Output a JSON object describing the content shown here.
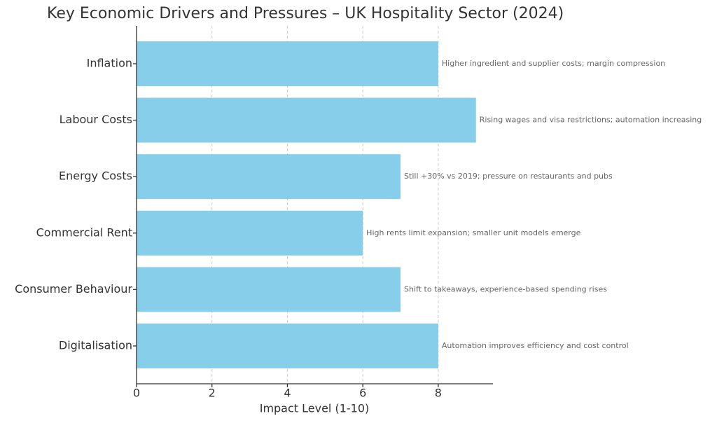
{
  "chart_data": {
    "type": "hbar",
    "title": "Key Economic Drivers and Pressures – UK Hospitality Sector (2024)",
    "x_label": "Impact Level (1-10)",
    "categories": [
      "Inflation",
      "Labour Costs",
      "Energy Costs",
      "Commercial Rent",
      "Consumer Behaviour",
      "Digitalisation"
    ],
    "values": [
      8,
      9,
      7,
      6,
      7,
      8
    ],
    "annotations": [
      "Higher ingredient and supplier costs; margin compression",
      "Rising wages and visa restrictions; automation increasing",
      "Still +30% vs 2019; pressure on restaurants and pubs",
      "High rents limit expansion; smaller unit models emerge",
      "Shift to takeaways, experience-based spending rises",
      "Automation improves efficiency and cost control"
    ],
    "color": "#87ceeb",
    "xlim": [
      0,
      9.45
    ],
    "xticks": [
      0,
      2,
      4,
      6,
      8
    ],
    "grid": true
  }
}
